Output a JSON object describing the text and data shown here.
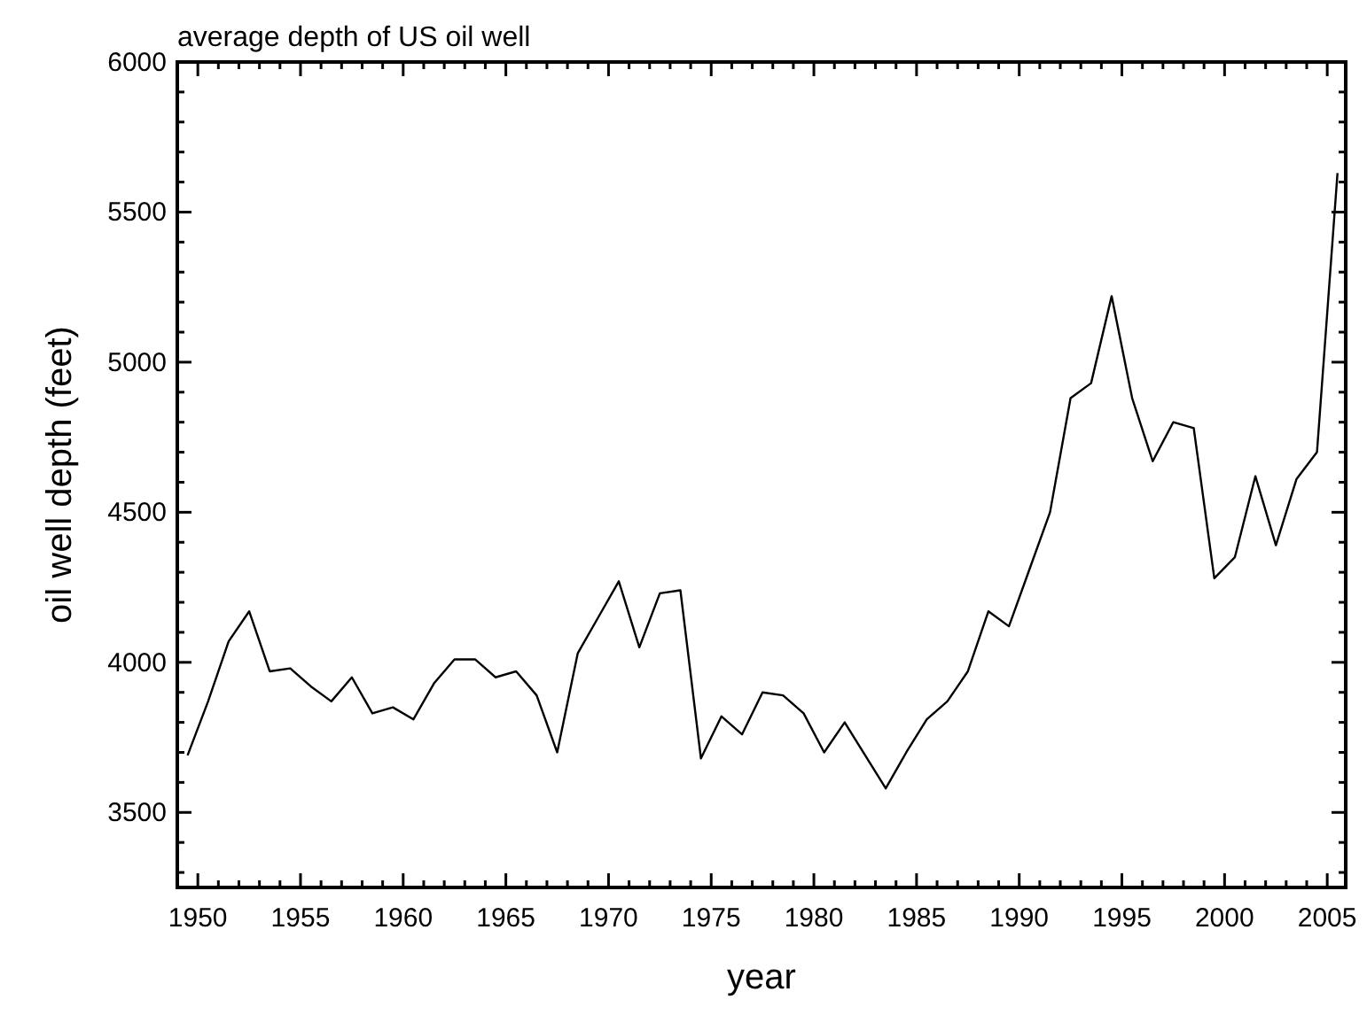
{
  "chart_data": {
    "type": "line",
    "title": "average depth of US oil well",
    "xlabel": "year",
    "ylabel": "oil well depth (feet)",
    "x": [
      1949.5,
      1950.5,
      1951.5,
      1952.5,
      1953.5,
      1954.5,
      1955.5,
      1956.5,
      1957.5,
      1958.5,
      1959.5,
      1960.5,
      1961.5,
      1962.5,
      1963.5,
      1964.5,
      1965.5,
      1966.5,
      1967.5,
      1968.5,
      1969.5,
      1970.5,
      1971.5,
      1972.5,
      1973.5,
      1974.5,
      1975.5,
      1976.5,
      1977.5,
      1978.5,
      1979.5,
      1980.5,
      1981.5,
      1982.5,
      1983.5,
      1984.5,
      1985.5,
      1986.5,
      1987.5,
      1988.5,
      1989.5,
      1990.5,
      1991.5,
      1992.5,
      1993.5,
      1994.5,
      1995.5,
      1996.5,
      1997.5,
      1998.5,
      1999.5,
      2000.5,
      2001.5,
      2002.5,
      2003.5,
      2004.5,
      2005.5
    ],
    "series": [
      {
        "color": "#000000",
        "values": [
          3690,
          3870,
          4070,
          4170,
          3970,
          3980,
          3920,
          3870,
          3950,
          3830,
          3850,
          3810,
          3930,
          4010,
          4010,
          3950,
          3970,
          3890,
          3700,
          4030,
          4150,
          4270,
          4050,
          4230,
          4240,
          3680,
          3820,
          3760,
          3900,
          3890,
          3830,
          3700,
          3800,
          3690,
          3580,
          3700,
          3810,
          3870,
          3970,
          4170,
          4120,
          4310,
          4500,
          4880,
          4930,
          5220,
          4880,
          4670,
          4800,
          4780,
          4280,
          4350,
          4620,
          4390,
          4610,
          4700,
          5630
        ]
      }
    ],
    "xlim": [
      1949,
      2005.9
    ],
    "ylim": [
      3250,
      6000
    ],
    "xticks": [
      1950,
      {
        "value": 1951,
        "label": null
      },
      {
        "value": 1952,
        "label": null
      },
      {
        "value": 1953,
        "label": null
      },
      {
        "value": 1954,
        "label": null
      },
      1955,
      {
        "value": 1956,
        "label": null
      },
      {
        "value": 1957,
        "label": null
      },
      {
        "value": 1958,
        "label": null
      },
      {
        "value": 1959,
        "label": null
      },
      1960,
      {
        "value": 1961,
        "label": null
      },
      {
        "value": 1962,
        "label": null
      },
      {
        "value": 1963,
        "label": null
      },
      {
        "value": 1964,
        "label": null
      },
      1965,
      {
        "value": 1966,
        "label": null
      },
      {
        "value": 1967,
        "label": null
      },
      {
        "value": 1968,
        "label": null
      },
      {
        "value": 1969,
        "label": null
      },
      1970,
      {
        "value": 1971,
        "label": null
      },
      {
        "value": 1972,
        "label": null
      },
      {
        "value": 1973,
        "label": null
      },
      {
        "value": 1974,
        "label": null
      },
      1975,
      {
        "value": 1976,
        "label": null
      },
      {
        "value": 1977,
        "label": null
      },
      {
        "value": 1978,
        "label": null
      },
      {
        "value": 1979,
        "label": null
      },
      1980,
      {
        "value": 1981,
        "label": null
      },
      {
        "value": 1982,
        "label": null
      },
      {
        "value": 1983,
        "label": null
      },
      {
        "value": 1984,
        "label": null
      },
      1985,
      {
        "value": 1986,
        "label": null
      },
      {
        "value": 1987,
        "label": null
      },
      {
        "value": 1988,
        "label": null
      },
      {
        "value": 1989,
        "label": null
      },
      1990,
      {
        "value": 1991,
        "label": null
      },
      {
        "value": 1992,
        "label": null
      },
      {
        "value": 1993,
        "label": null
      },
      {
        "value": 1994,
        "label": null
      },
      1995,
      {
        "value": 1996,
        "label": null
      },
      {
        "value": 1997,
        "label": null
      },
      {
        "value": 1998,
        "label": null
      },
      {
        "value": 1999,
        "label": null
      },
      2000,
      {
        "value": 2001,
        "label": null
      },
      {
        "value": 2002,
        "label": null
      },
      {
        "value": 2003,
        "label": null
      },
      {
        "value": 2004,
        "label": null
      },
      2005
    ],
    "yticks": [
      {
        "value": 3300,
        "label": null
      },
      {
        "value": 3400,
        "label": null
      },
      3500,
      {
        "value": 3600,
        "label": null
      },
      {
        "value": 3700,
        "label": null
      },
      {
        "value": 3800,
        "label": null
      },
      {
        "value": 3900,
        "label": null
      },
      4000,
      {
        "value": 4100,
        "label": null
      },
      {
        "value": 4200,
        "label": null
      },
      {
        "value": 4300,
        "label": null
      },
      {
        "value": 4400,
        "label": null
      },
      4500,
      {
        "value": 4600,
        "label": null
      },
      {
        "value": 4700,
        "label": null
      },
      {
        "value": 4800,
        "label": null
      },
      {
        "value": 4900,
        "label": null
      },
      5000,
      {
        "value": 5100,
        "label": null
      },
      {
        "value": 5200,
        "label": null
      },
      {
        "value": 5300,
        "label": null
      },
      {
        "value": 5400,
        "label": null
      },
      5500,
      {
        "value": 5600,
        "label": null
      },
      {
        "value": 5700,
        "label": null
      },
      {
        "value": 5800,
        "label": null
      },
      {
        "value": 5900,
        "label": null
      },
      6000
    ],
    "grid": false,
    "marker": "none",
    "line_style": "solid"
  }
}
